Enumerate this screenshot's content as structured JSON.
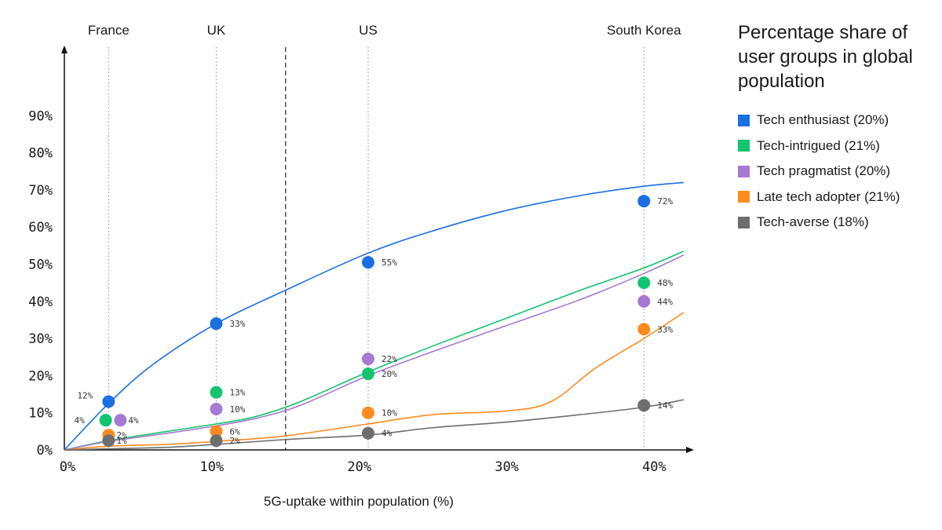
{
  "chart_data": {
    "type": "line",
    "xlabel": "5G-uptake within population (%)",
    "ylabel": "",
    "xlim": [
      0,
      42
    ],
    "ylim": [
      0,
      100
    ],
    "x_ticks": [
      0,
      10,
      20,
      30,
      40
    ],
    "x_tick_labels": [
      "0%",
      "10%",
      "20%",
      "30%",
      "40%"
    ],
    "y_ticks": [
      0,
      10,
      20,
      30,
      40,
      50,
      60,
      70,
      80,
      90
    ],
    "y_tick_labels": [
      "0%",
      "10%",
      "20%",
      "30%",
      "40%",
      "50%",
      "60%",
      "70%",
      "80%",
      "90%"
    ],
    "divider_x": 15,
    "countries": [
      {
        "name": "France",
        "x": 3
      },
      {
        "name": "UK",
        "x": 10.3
      },
      {
        "name": "US",
        "x": 20.6
      },
      {
        "name": "South Korea",
        "x": 39.3
      }
    ],
    "legend": {
      "title": "Percentage share of user groups in global population",
      "placement": "right"
    },
    "series": [
      {
        "name": "Tech enthusiast (20%)",
        "color": "#1b6fe0",
        "curve": [
          [
            0,
            0
          ],
          [
            3,
            12.5
          ],
          [
            6,
            23
          ],
          [
            10.3,
            34
          ],
          [
            15,
            43
          ],
          [
            20.6,
            53
          ],
          [
            25,
            59
          ],
          [
            30,
            64.5
          ],
          [
            35,
            68.5
          ],
          [
            39.3,
            71
          ],
          [
            42,
            72
          ]
        ],
        "points": [
          {
            "x": 3,
            "y": 13,
            "label": "12%"
          },
          {
            "x": 10.3,
            "y": 34,
            "label": "33%"
          },
          {
            "x": 20.6,
            "y": 50.5,
            "label": "55%"
          },
          {
            "x": 39.3,
            "y": 67,
            "label": "72%"
          }
        ]
      },
      {
        "name": "Tech-intrigued (21%)",
        "color": "#12c56e",
        "curve": [
          [
            0,
            0
          ],
          [
            3,
            2.5
          ],
          [
            7,
            5
          ],
          [
            10.3,
            7
          ],
          [
            13,
            9
          ],
          [
            16,
            13
          ],
          [
            20.6,
            21
          ],
          [
            25,
            28
          ],
          [
            30,
            35.5
          ],
          [
            35,
            43
          ],
          [
            39.3,
            49
          ],
          [
            42,
            53.5
          ]
        ],
        "points": [
          {
            "x": 2.8,
            "y": 8,
            "label": "4%"
          },
          {
            "x": 10.3,
            "y": 15.5,
            "label": "13%"
          },
          {
            "x": 20.6,
            "y": 20.5,
            "label": "20%"
          },
          {
            "x": 39.3,
            "y": 45,
            "label": "48%"
          }
        ]
      },
      {
        "name": "Tech pragmatist (20%)",
        "color": "#a679d3",
        "curve": [
          [
            0,
            0
          ],
          [
            3,
            2.3
          ],
          [
            7,
            4.5
          ],
          [
            10.3,
            6.5
          ],
          [
            13,
            8.5
          ],
          [
            16,
            12
          ],
          [
            20.6,
            20
          ],
          [
            25,
            26.5
          ],
          [
            30,
            33.5
          ],
          [
            35,
            40.5
          ],
          [
            39.3,
            47.5
          ],
          [
            42,
            52.5
          ]
        ],
        "points": [
          {
            "x": 3.8,
            "y": 8,
            "label": "4%"
          },
          {
            "x": 10.3,
            "y": 11,
            "label": "10%"
          },
          {
            "x": 20.6,
            "y": 24.5,
            "label": "22%"
          },
          {
            "x": 39.3,
            "y": 40,
            "label": "44%"
          }
        ]
      },
      {
        "name": "Late tech adopter (21%)",
        "color": "#ff8b1f",
        "curve": [
          [
            0,
            0
          ],
          [
            3,
            1
          ],
          [
            7,
            1.5
          ],
          [
            10.3,
            2.3
          ],
          [
            15,
            3.8
          ],
          [
            20.6,
            7
          ],
          [
            25,
            9.5
          ],
          [
            30,
            10.5
          ],
          [
            33,
            13
          ],
          [
            36,
            22
          ],
          [
            39.3,
            30
          ],
          [
            42,
            37
          ]
        ],
        "points": [
          {
            "x": 3,
            "y": 4,
            "label": "2%"
          },
          {
            "x": 10.3,
            "y": 5,
            "label": "6%"
          },
          {
            "x": 20.6,
            "y": 10,
            "label": "10%"
          },
          {
            "x": 39.3,
            "y": 32.5,
            "label": "33%"
          }
        ]
      },
      {
        "name": "Tech-averse (18%)",
        "color": "#6e6e6e",
        "curve": [
          [
            0,
            0
          ],
          [
            3,
            0.3
          ],
          [
            7,
            0.7
          ],
          [
            10.3,
            1.5
          ],
          [
            15,
            2.8
          ],
          [
            20.6,
            4
          ],
          [
            25,
            6
          ],
          [
            30,
            7.5
          ],
          [
            35,
            9.5
          ],
          [
            39.3,
            11.5
          ],
          [
            42,
            13.5
          ]
        ],
        "points": [
          {
            "x": 3,
            "y": 2.5,
            "label": "1%"
          },
          {
            "x": 10.3,
            "y": 2.5,
            "label": "2%"
          },
          {
            "x": 20.6,
            "y": 4.5,
            "label": "4%"
          },
          {
            "x": 39.3,
            "y": 12,
            "label": "14%"
          }
        ]
      }
    ]
  }
}
